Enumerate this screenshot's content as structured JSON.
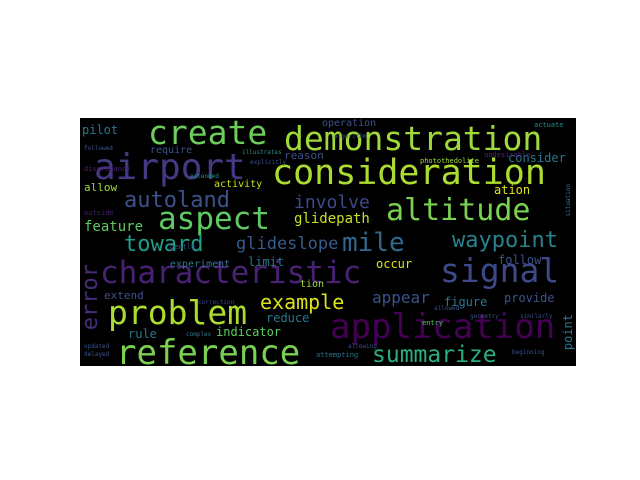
{
  "colors": {
    "background": "#000000",
    "page": "#ffffff"
  },
  "words": {
    "create": "create",
    "demonstration": "demonstration",
    "airport": "airport",
    "consideration": "consideration",
    "autoland": "autoland",
    "altitude": "altitude",
    "aspect": "aspect",
    "mile": "mile",
    "waypoint": "waypoint",
    "toward": "toward",
    "glideslope": "glideslope",
    "characteristic": "characteristic",
    "signal": "signal",
    "error": "error",
    "problem": "problem",
    "example": "example",
    "application": "application",
    "reference": "reference",
    "summarize": "summarize",
    "pilot": "pilot",
    "operation": "operation",
    "require": "require",
    "reason": "reason",
    "consider": "consider",
    "activity": "activity",
    "allow": "allow",
    "involve": "involve",
    "glidepath": "glidepath",
    "ation": "ation",
    "feature": "feature",
    "limit": "limit",
    "occur": "occur",
    "follow": "follow",
    "experiment": "experiment",
    "tion": "tion",
    "extend": "extend",
    "reduce": "reduce",
    "appear": "appear",
    "figure": "figure",
    "provide": "provide",
    "rule": "rule",
    "indicator": "indicator",
    "point": "point",
    "algorithm": "algorithm",
    "undesirable": "undesirable",
    "photothedolite": "photothedolite",
    "illustrates": "illustrates",
    "explicitly": "explicitly",
    "discrepancy": "discrepancy",
    "gentle": "gentle",
    "outside": "outside",
    "correction": "correction",
    "entry": "entry",
    "allowed": "allowed",
    "geometry": "geometry",
    "similarly": "similarly",
    "attempting": "attempting",
    "allowing": "allowing",
    "complex": "complex",
    "updated": "updated",
    "delayed": "delayed",
    "beginning": "beginning",
    "followed": "followed",
    "extended": "extended",
    "actuate": "actuate",
    "situation": "situation"
  }
}
